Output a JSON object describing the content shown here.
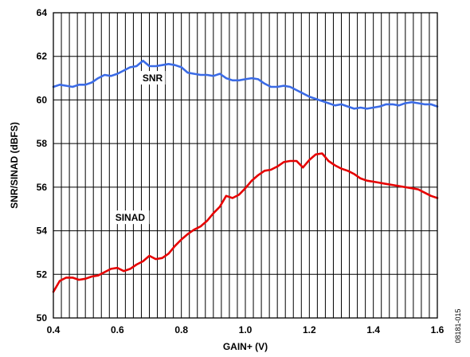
{
  "figure_id": "08181-015",
  "chart_data": {
    "type": "line",
    "xlabel": "GAIN+ (V)",
    "ylabel": "SNR/SINAD (dBFS)",
    "xlim": [
      0.4,
      1.6
    ],
    "ylim": [
      50,
      64
    ],
    "x_ticks": [
      0.4,
      0.6,
      0.8,
      1.0,
      1.2,
      1.4,
      1.6
    ],
    "x_tick_labels": [
      "0.4",
      "0.6",
      "0.8",
      "1.0",
      "1.2",
      "1.4",
      "1.6"
    ],
    "y_ticks": [
      50,
      52,
      54,
      56,
      58,
      60,
      62,
      64
    ],
    "y_tick_labels": [
      "50",
      "52",
      "54",
      "56",
      "58",
      "60",
      "62",
      "64"
    ],
    "grid": true,
    "series": [
      {
        "name": "SNR",
        "color": "#3b6be6",
        "x": [
          0.4,
          0.42,
          0.44,
          0.46,
          0.48,
          0.5,
          0.52,
          0.54,
          0.56,
          0.58,
          0.6,
          0.62,
          0.64,
          0.66,
          0.68,
          0.7,
          0.72,
          0.74,
          0.76,
          0.78,
          0.8,
          0.82,
          0.84,
          0.86,
          0.88,
          0.9,
          0.92,
          0.94,
          0.96,
          0.98,
          1.0,
          1.02,
          1.04,
          1.06,
          1.08,
          1.1,
          1.12,
          1.14,
          1.16,
          1.18,
          1.2,
          1.22,
          1.24,
          1.26,
          1.28,
          1.3,
          1.32,
          1.34,
          1.36,
          1.38,
          1.4,
          1.42,
          1.44,
          1.46,
          1.48,
          1.5,
          1.52,
          1.54,
          1.56,
          1.58,
          1.6
        ],
        "y": [
          60.6,
          60.7,
          60.65,
          60.6,
          60.7,
          60.7,
          60.8,
          61.0,
          61.15,
          61.1,
          61.2,
          61.35,
          61.5,
          61.55,
          61.8,
          61.55,
          61.55,
          61.6,
          61.65,
          61.6,
          61.5,
          61.25,
          61.2,
          61.15,
          61.15,
          61.1,
          61.2,
          61.0,
          60.9,
          60.9,
          60.95,
          61.0,
          60.95,
          60.75,
          60.6,
          60.6,
          60.65,
          60.6,
          60.45,
          60.3,
          60.15,
          60.05,
          59.95,
          59.85,
          59.75,
          59.8,
          59.7,
          59.6,
          59.65,
          59.6,
          59.65,
          59.7,
          59.8,
          59.8,
          59.75,
          59.85,
          59.9,
          59.85,
          59.8,
          59.8,
          59.7
        ]
      },
      {
        "name": "SINAD",
        "color": "#e60000",
        "x": [
          0.4,
          0.42,
          0.44,
          0.46,
          0.48,
          0.5,
          0.52,
          0.54,
          0.56,
          0.58,
          0.6,
          0.62,
          0.64,
          0.66,
          0.68,
          0.7,
          0.72,
          0.74,
          0.76,
          0.78,
          0.8,
          0.82,
          0.84,
          0.86,
          0.88,
          0.9,
          0.92,
          0.94,
          0.96,
          0.98,
          1.0,
          1.02,
          1.04,
          1.06,
          1.08,
          1.1,
          1.12,
          1.14,
          1.16,
          1.18,
          1.2,
          1.22,
          1.24,
          1.26,
          1.28,
          1.3,
          1.32,
          1.34,
          1.36,
          1.38,
          1.4,
          1.42,
          1.44,
          1.46,
          1.48,
          1.5,
          1.52,
          1.54,
          1.56,
          1.58,
          1.6
        ],
        "y": [
          51.2,
          51.7,
          51.85,
          51.85,
          51.75,
          51.8,
          51.9,
          51.95,
          52.1,
          52.25,
          52.3,
          52.15,
          52.25,
          52.45,
          52.6,
          52.85,
          52.7,
          52.75,
          52.95,
          53.3,
          53.6,
          53.85,
          54.05,
          54.2,
          54.45,
          54.8,
          55.1,
          55.6,
          55.5,
          55.65,
          55.95,
          56.3,
          56.55,
          56.75,
          56.8,
          56.95,
          57.15,
          57.2,
          57.2,
          56.9,
          57.25,
          57.5,
          57.55,
          57.2,
          57.0,
          56.85,
          56.75,
          56.6,
          56.4,
          56.3,
          56.25,
          56.2,
          56.15,
          56.1,
          56.05,
          56.0,
          55.95,
          55.9,
          55.75,
          55.6,
          55.5
        ]
      }
    ],
    "annotations": [
      {
        "text": "SNR",
        "series": "SNR",
        "at_x": 0.71,
        "at_y": 61.0
      },
      {
        "text": "SINAD",
        "series": "SINAD",
        "at_x": 0.64,
        "at_y": 54.6
      }
    ]
  }
}
